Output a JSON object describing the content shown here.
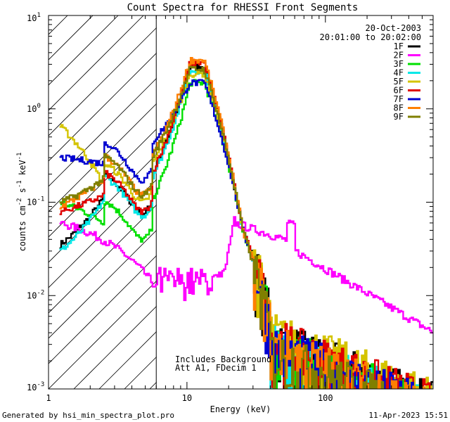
{
  "chart_data": {
    "type": "line",
    "title": "Count Spectra for RHESSI Front Segments",
    "xlabel": "Energy (keV)",
    "ylabel": {
      "main": "counts cm",
      "sup1": "-2",
      "mid": " s",
      "sup2": "-1",
      "end": " keV",
      "sup3": "-1"
    },
    "xscale": "log",
    "yscale": "log",
    "xlim": [
      1,
      600
    ],
    "ylim": [
      0.001,
      10
    ],
    "x_ticks": [
      {
        "v": 1,
        "label": "1"
      },
      {
        "v": 10,
        "label": "10"
      },
      {
        "v": 100,
        "label": "100"
      }
    ],
    "y_ticks": [
      {
        "v": 0.001,
        "base": "10",
        "exp": "-3"
      },
      {
        "v": 0.01,
        "base": "10",
        "exp": "-2"
      },
      {
        "v": 0.1,
        "base": "10",
        "exp": "-1"
      },
      {
        "v": 1,
        "base": "10",
        "exp": "0"
      },
      {
        "v": 10,
        "base": "10",
        "exp": "1"
      }
    ],
    "shaded_region": {
      "x_min": 1,
      "x_max": 6,
      "style": "diagonal-hatch"
    },
    "legend": {
      "position": "top-right",
      "date": "20-Oct-2003",
      "time_range": "20:01:00 to 20:02:00",
      "entries": [
        {
          "name": "1F",
          "color": "#000000"
        },
        {
          "name": "2F",
          "color": "#ff00ff"
        },
        {
          "name": "3F",
          "color": "#00e000"
        },
        {
          "name": "4F",
          "color": "#00e8e8"
        },
        {
          "name": "5F",
          "color": "#d4c400"
        },
        {
          "name": "6F",
          "color": "#e00000"
        },
        {
          "name": "7F",
          "color": "#0000d0"
        },
        {
          "name": "8F",
          "color": "#ff7f00"
        },
        {
          "name": "9F",
          "color": "#7f7f00"
        }
      ]
    },
    "annotations": [
      "Includes Background",
      "Att A1, FDecim 1"
    ],
    "series": [
      {
        "name": "1F",
        "peak": 3.0,
        "low": 0.035,
        "bump": 0.19,
        "tail": 0.0035
      },
      {
        "name": "2F",
        "peak": 0.012,
        "low": 0.06,
        "bump": 0.06,
        "tail": 0.004
      },
      {
        "name": "3F",
        "peak": 2.0,
        "low": 0.1,
        "bump": 0.1,
        "tail": 0.003
      },
      {
        "name": "4F",
        "peak": 2.7,
        "low": 0.03,
        "bump": 0.18,
        "tail": 0.003
      },
      {
        "name": "5F",
        "peak": 2.5,
        "low": 0.65,
        "bump": 0.25,
        "tail": 0.004
      },
      {
        "name": "6F",
        "peak": 3.3,
        "low": 0.08,
        "bump": 0.2,
        "tail": 0.0035
      },
      {
        "name": "7F",
        "peak": 2.0,
        "low": 0.3,
        "bump": 0.43,
        "tail": 0.003
      },
      {
        "name": "8F",
        "peak": 3.5,
        "low": 0.09,
        "bump": 0.3,
        "tail": 0.003
      },
      {
        "name": "9F",
        "peak": 2.8,
        "low": 0.1,
        "bump": 0.3,
        "tail": 0.0025
      }
    ]
  },
  "footer": {
    "left": "Generated by hsi_min_spectra_plot.pro",
    "right": "11-Apr-2023 15:51"
  }
}
